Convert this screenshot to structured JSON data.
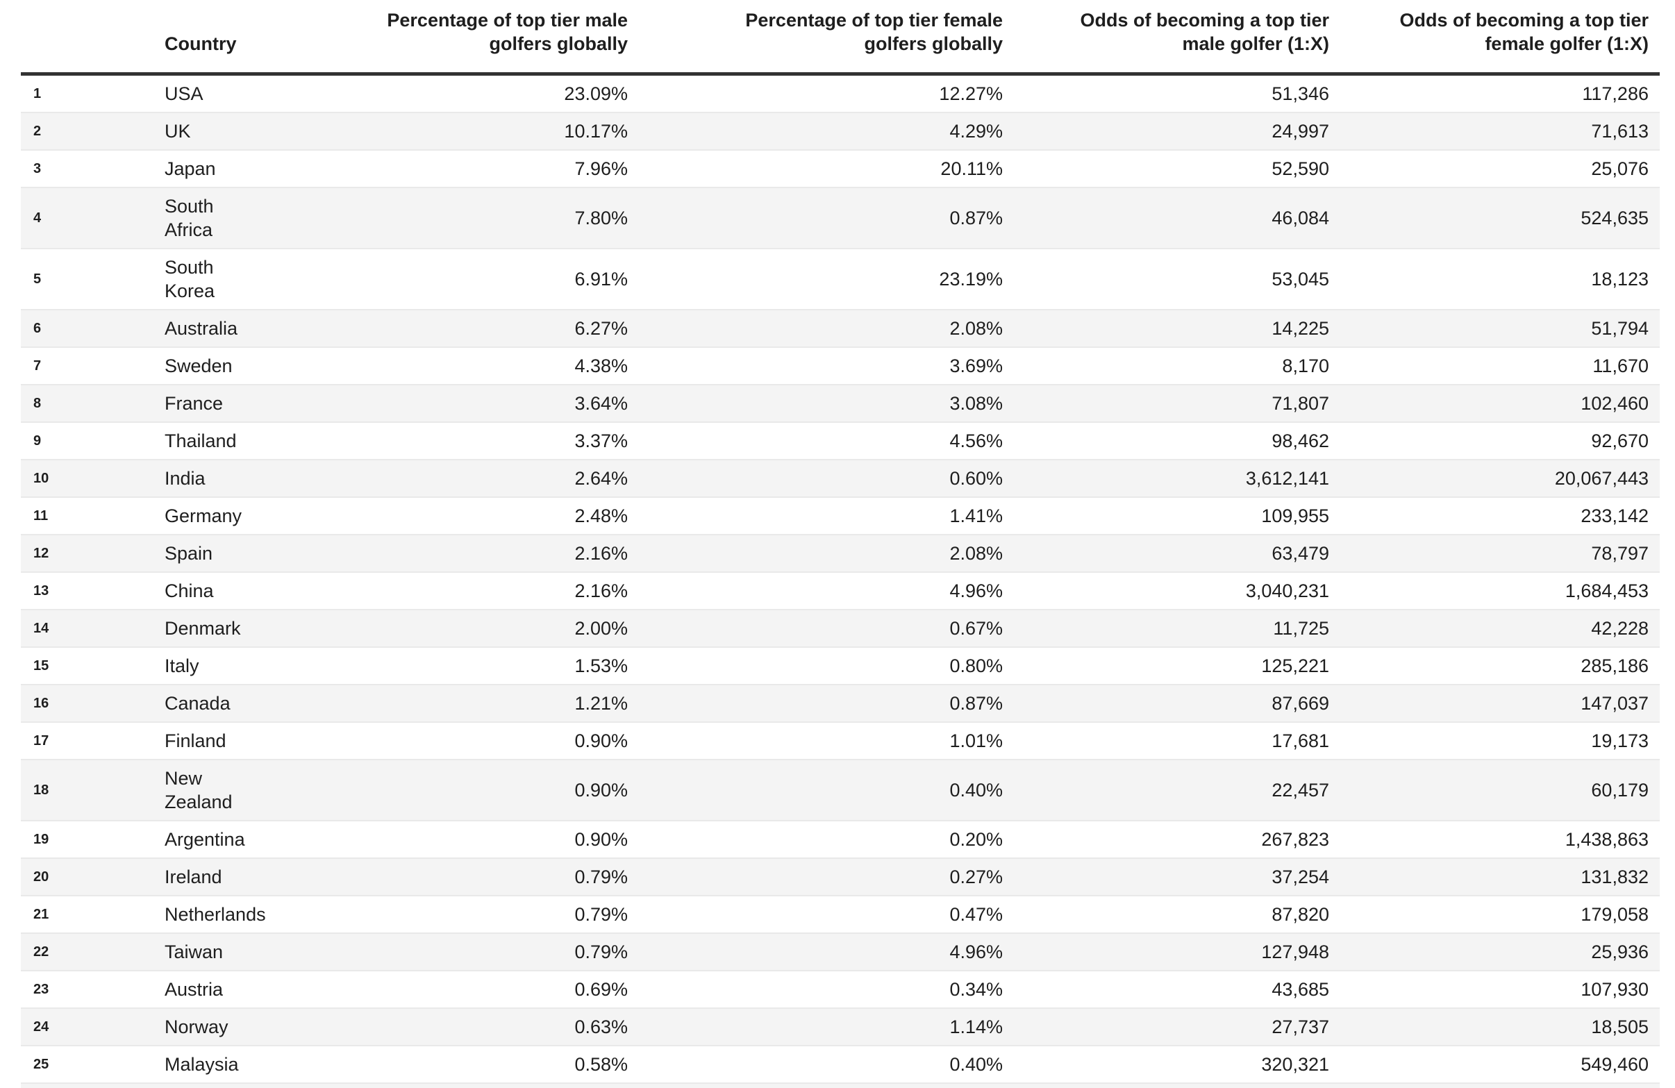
{
  "colors": {
    "stripe": "#f4f4f4",
    "divider": "#e9e9e9",
    "rule": "#323232",
    "text": "#1e1e1e"
  },
  "chart_data": {
    "type": "table",
    "title": "",
    "columns": [
      {
        "key": "rank",
        "label": ""
      },
      {
        "key": "country",
        "label": "Country"
      },
      {
        "key": "pct_male",
        "label": "Percentage of top tier male\ngolfers globally"
      },
      {
        "key": "pct_female",
        "label": "Percentage of top tier female\ngolfers globally"
      },
      {
        "key": "odds_male",
        "label": "Odds of becoming a top tier\nmale golfer (1:X)"
      },
      {
        "key": "odds_female",
        "label": "Odds of becoming a top tier\nfemale golfer (1:X)"
      }
    ],
    "rows": [
      {
        "rank": "1",
        "country": "USA",
        "pct_male": "23.09%",
        "pct_female": "12.27%",
        "odds_male": "51,346",
        "odds_female": "117,286"
      },
      {
        "rank": "2",
        "country": "UK",
        "pct_male": "10.17%",
        "pct_female": "4.29%",
        "odds_male": "24,997",
        "odds_female": "71,613"
      },
      {
        "rank": "3",
        "country": "Japan",
        "pct_male": "7.96%",
        "pct_female": "20.11%",
        "odds_male": "52,590",
        "odds_female": "25,076"
      },
      {
        "rank": "4",
        "country": "South\nAfrica",
        "pct_male": "7.80%",
        "pct_female": "0.87%",
        "odds_male": "46,084",
        "odds_female": "524,635"
      },
      {
        "rank": "5",
        "country": "South\nKorea",
        "pct_male": "6.91%",
        "pct_female": "23.19%",
        "odds_male": "53,045",
        "odds_female": "18,123"
      },
      {
        "rank": "6",
        "country": "Australia",
        "pct_male": "6.27%",
        "pct_female": "2.08%",
        "odds_male": "14,225",
        "odds_female": "51,794"
      },
      {
        "rank": "7",
        "country": "Sweden",
        "pct_male": "4.38%",
        "pct_female": "3.69%",
        "odds_male": "8,170",
        "odds_female": "11,670"
      },
      {
        "rank": "8",
        "country": "France",
        "pct_male": "3.64%",
        "pct_female": "3.08%",
        "odds_male": "71,807",
        "odds_female": "102,460"
      },
      {
        "rank": "9",
        "country": "Thailand",
        "pct_male": "3.37%",
        "pct_female": "4.56%",
        "odds_male": "98,462",
        "odds_female": "92,670"
      },
      {
        "rank": "10",
        "country": "India",
        "pct_male": "2.64%",
        "pct_female": "0.60%",
        "odds_male": "3,612,141",
        "odds_female": "20,067,443"
      },
      {
        "rank": "11",
        "country": "Germany",
        "pct_male": "2.48%",
        "pct_female": "1.41%",
        "odds_male": "109,955",
        "odds_female": "233,142"
      },
      {
        "rank": "12",
        "country": "Spain",
        "pct_male": "2.16%",
        "pct_female": "2.08%",
        "odds_male": "63,479",
        "odds_female": "78,797"
      },
      {
        "rank": "13",
        "country": "China",
        "pct_male": "2.16%",
        "pct_female": "4.96%",
        "odds_male": "3,040,231",
        "odds_female": "1,684,453"
      },
      {
        "rank": "14",
        "country": "Denmark",
        "pct_male": "2.00%",
        "pct_female": "0.67%",
        "odds_male": "11,725",
        "odds_female": "42,228"
      },
      {
        "rank": "15",
        "country": "Italy",
        "pct_male": "1.53%",
        "pct_female": "0.80%",
        "odds_male": "125,221",
        "odds_female": "285,186"
      },
      {
        "rank": "16",
        "country": "Canada",
        "pct_male": "1.21%",
        "pct_female": "0.87%",
        "odds_male": "87,669",
        "odds_female": "147,037"
      },
      {
        "rank": "17",
        "country": "Finland",
        "pct_male": "0.90%",
        "pct_female": "1.01%",
        "odds_male": "17,681",
        "odds_female": "19,173"
      },
      {
        "rank": "18",
        "country": "New\nZealand",
        "pct_male": "0.90%",
        "pct_female": "0.40%",
        "odds_male": "22,457",
        "odds_female": "60,179"
      },
      {
        "rank": "19",
        "country": "Argentina",
        "pct_male": "0.90%",
        "pct_female": "0.20%",
        "odds_male": "267,823",
        "odds_female": "1,438,863"
      },
      {
        "rank": "20",
        "country": "Ireland",
        "pct_male": "0.79%",
        "pct_female": "0.27%",
        "odds_male": "37,254",
        "odds_female": "131,832"
      },
      {
        "rank": "21",
        "country": "Netherlands",
        "pct_male": "0.79%",
        "pct_female": "0.47%",
        "odds_male": "87,820",
        "odds_female": "179,058"
      },
      {
        "rank": "22",
        "country": "Taiwan",
        "pct_male": "0.79%",
        "pct_female": "4.96%",
        "odds_male": "127,948",
        "odds_female": "25,936"
      },
      {
        "rank": "23",
        "country": "Austria",
        "pct_male": "0.69%",
        "pct_female": "0.34%",
        "odds_male": "43,685",
        "odds_female": "107,930"
      },
      {
        "rank": "24",
        "country": "Norway",
        "pct_male": "0.63%",
        "pct_female": "1.14%",
        "odds_male": "27,737",
        "odds_female": "18,505"
      },
      {
        "rank": "25",
        "country": "Malaysia",
        "pct_male": "0.58%",
        "pct_female": "0.40%",
        "odds_male": "320,321",
        "odds_female": "549,460"
      }
    ]
  }
}
